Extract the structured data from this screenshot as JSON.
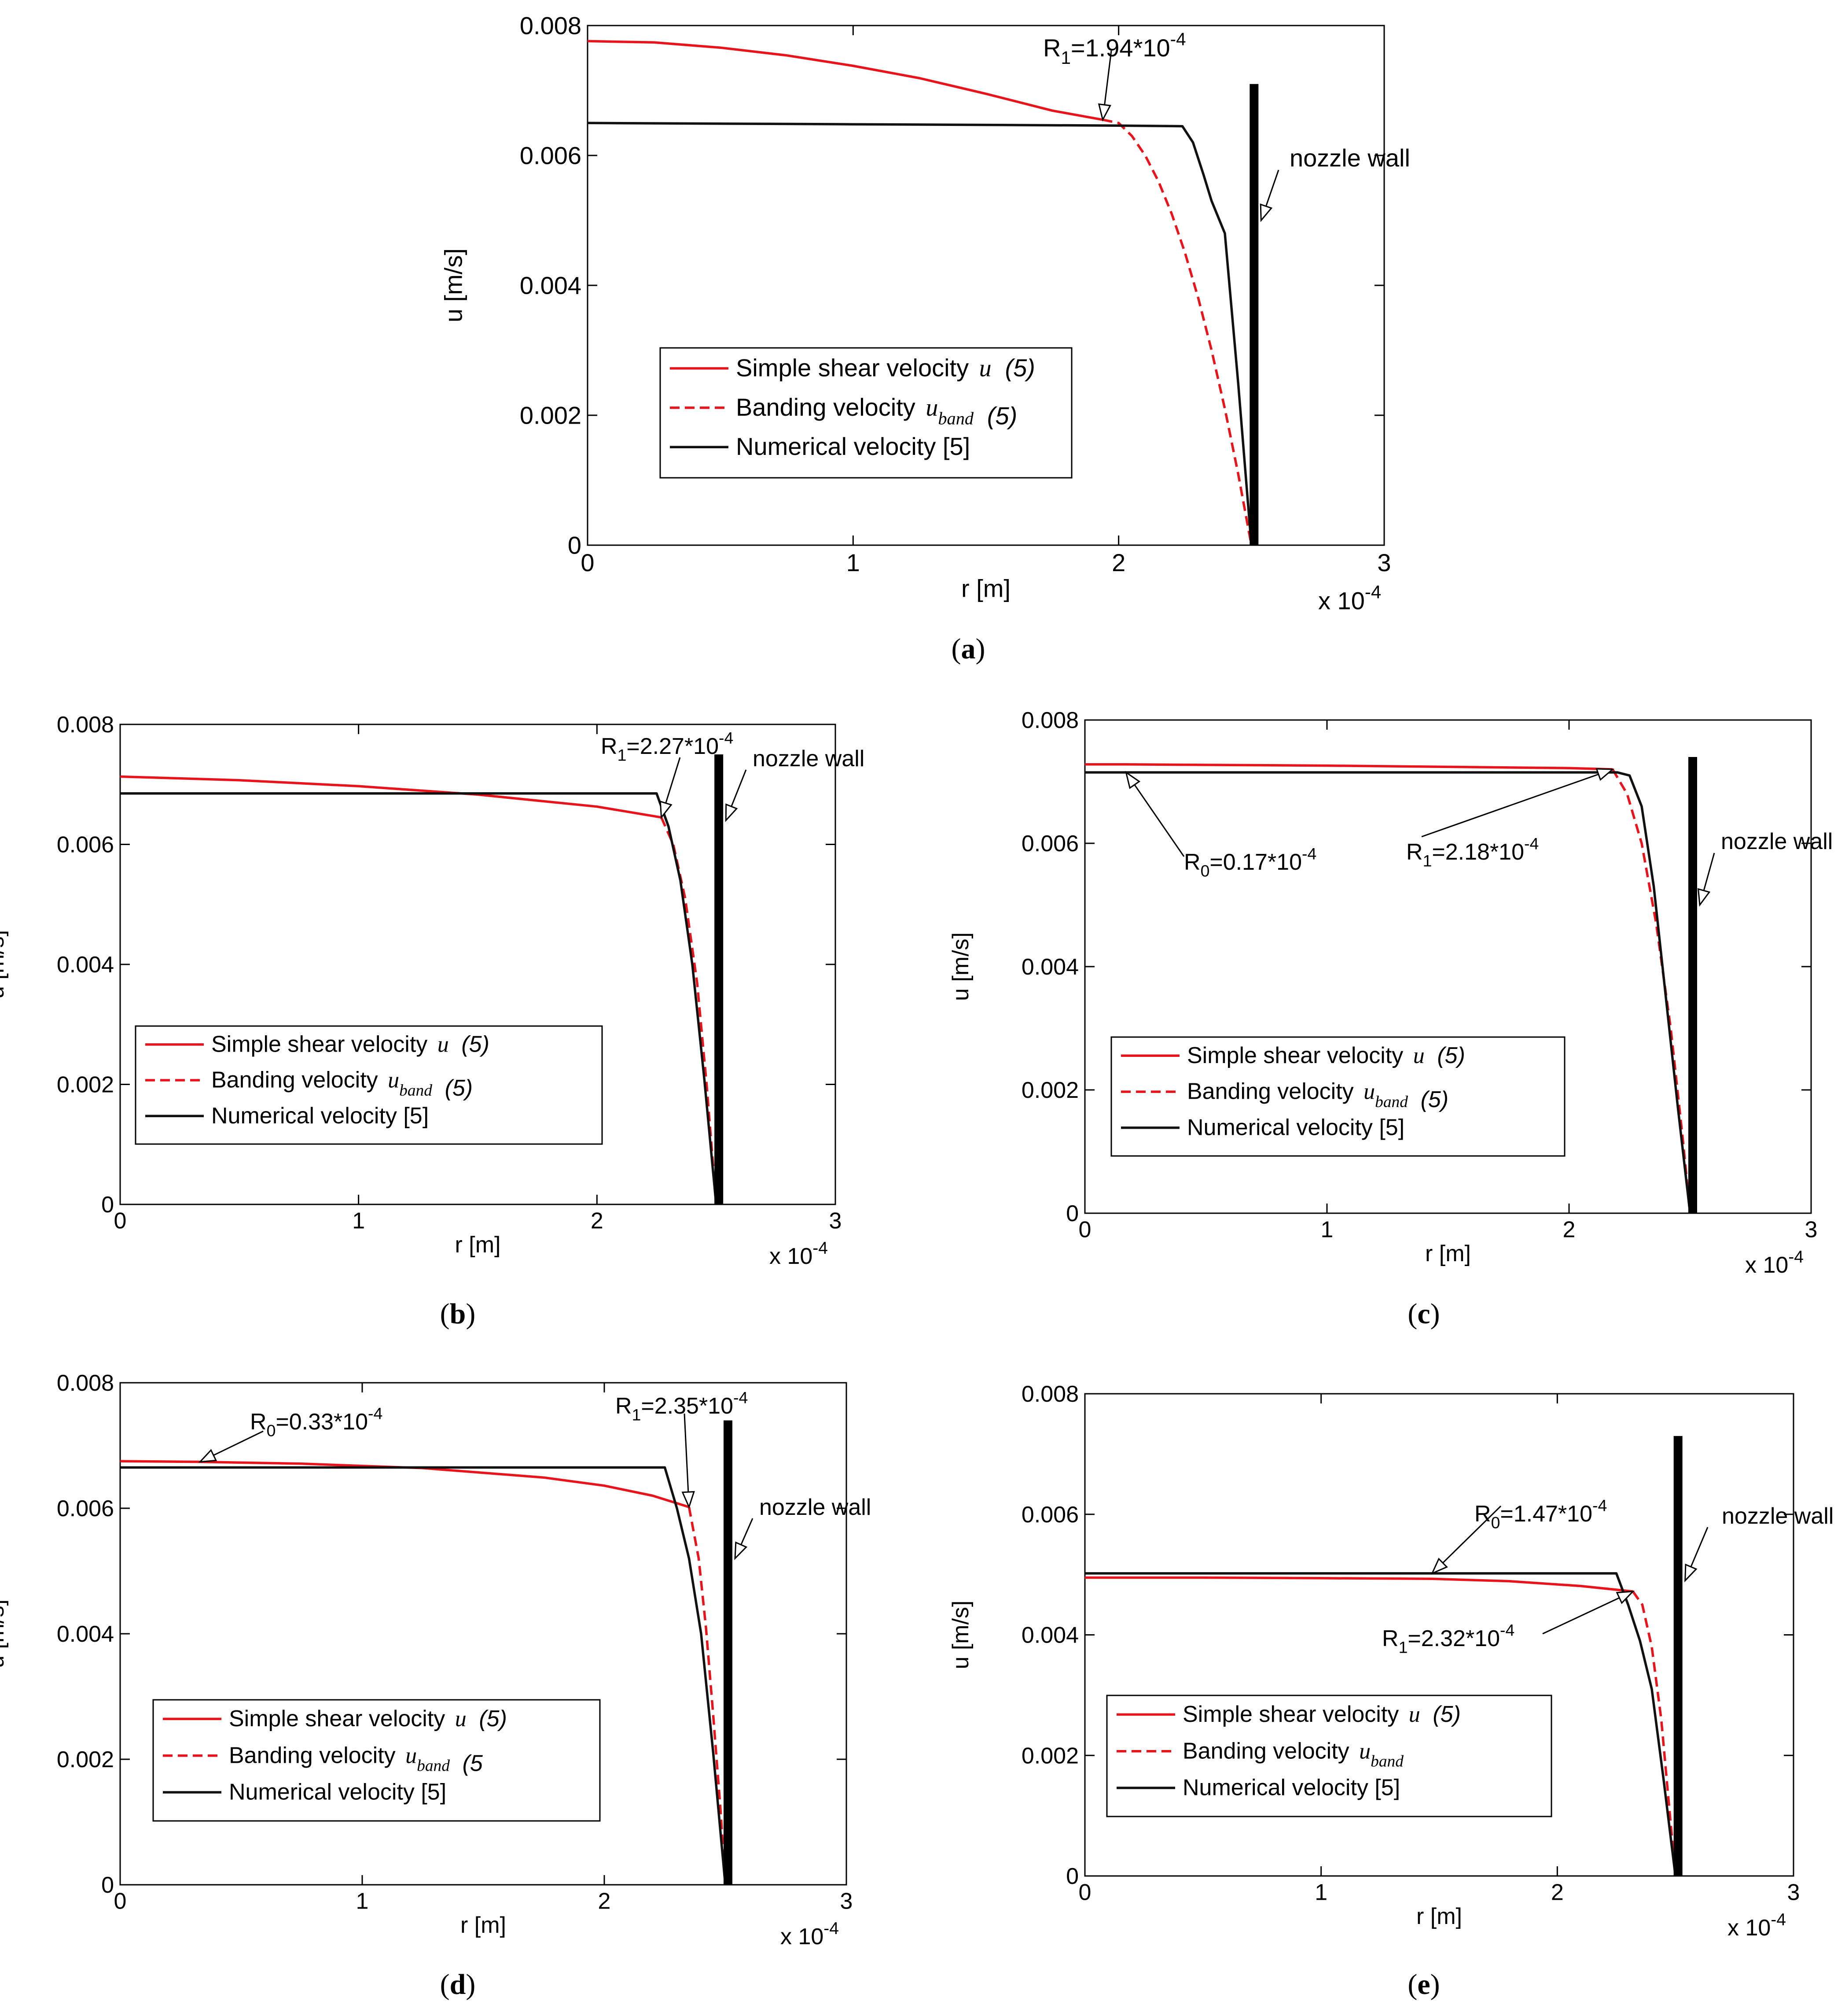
{
  "chart_data": [
    {
      "panel": "a",
      "type": "line",
      "caption_letter": "a",
      "xlabel": "r [m]",
      "ylabel": "u [m/s]",
      "xlim": [
        0,
        3
      ],
      "ylim": [
        0,
        0.008
      ],
      "xticks": [
        0,
        1,
        2,
        3
      ],
      "yticks": [
        0,
        0.002,
        0.004,
        0.006,
        0.008
      ],
      "x_tick_labels": [
        "0",
        "1",
        "2",
        "3"
      ],
      "y_tick_labels": [
        "0",
        "0.002",
        "0.004",
        "0.006",
        "0.008"
      ],
      "x_multiplier": "x 10",
      "x_multiplier_exp": "-4",
      "nozzle_wall": {
        "x": 2.5,
        "y_top": 0.0071
      },
      "series": [
        {
          "name": "Simple shear velocity u (5)",
          "color": "#e8141b",
          "dash": "solid",
          "x": [
            0,
            0.25,
            0.5,
            0.75,
            1.0,
            1.25,
            1.5,
            1.75,
            1.94
          ],
          "y": [
            0.00776,
            0.00774,
            0.00766,
            0.00754,
            0.00738,
            0.00719,
            0.00695,
            0.00669,
            0.00655
          ]
        },
        {
          "name": "Banding velocity u_band (5)",
          "color": "#e8141b",
          "dash": "dashed",
          "x": [
            1.94,
            2.0,
            2.05,
            2.1,
            2.15,
            2.2,
            2.25,
            2.3,
            2.35,
            2.4,
            2.45,
            2.5
          ],
          "y": [
            0.00655,
            0.0065,
            0.0063,
            0.006,
            0.0056,
            0.0051,
            0.0045,
            0.0038,
            0.003,
            0.0021,
            0.0011,
            0.0
          ]
        },
        {
          "name": "Numerical velocity [5]",
          "color": "#111111",
          "dash": "solid",
          "x": [
            0,
            1.0,
            2.0,
            2.24,
            2.28,
            2.32,
            2.35,
            2.4,
            2.45,
            2.5
          ],
          "y": [
            0.0065,
            0.00648,
            0.00646,
            0.00645,
            0.0062,
            0.0057,
            0.0053,
            0.0048,
            0.0025,
            0.0
          ]
        }
      ],
      "legend": [
        {
          "prefix": "Simple shear velocity ",
          "var": "u",
          "sub": "",
          "suffix": "(5)"
        },
        {
          "prefix": "Banding velocity ",
          "var": "u",
          "sub": "band",
          "suffix": "(5)"
        },
        {
          "prefix": "Numerical velocity [5]",
          "var": "",
          "sub": "",
          "suffix": ""
        }
      ],
      "annotations": [
        {
          "base": "R",
          "sub": "1",
          "mid": "=1.94*10",
          "sup": "-4",
          "x": 1.94,
          "y": 0.00655
        },
        {
          "base": "nozzle wall",
          "sub": "",
          "mid": "",
          "sup": "",
          "x": 2.5,
          "y": 0.005
        }
      ]
    },
    {
      "panel": "b",
      "type": "line",
      "caption_letter": "b",
      "xlabel": "r [m]",
      "ylabel": "u [m/s]",
      "xlim": [
        0,
        3
      ],
      "ylim": [
        0,
        0.008
      ],
      "xticks": [
        0,
        1,
        2,
        3
      ],
      "yticks": [
        0,
        0.002,
        0.004,
        0.006,
        0.008
      ],
      "x_tick_labels": [
        "0",
        "1",
        "2",
        "3"
      ],
      "y_tick_labels": [
        "0",
        "0.002",
        "0.004",
        "0.006",
        "0.008"
      ],
      "x_multiplier": "x 10",
      "x_multiplier_exp": "-4",
      "nozzle_wall": {
        "x": 2.5,
        "y_top": 0.0075
      },
      "series": [
        {
          "name": "Simple shear velocity u (5)",
          "color": "#e8141b",
          "dash": "solid",
          "x": [
            0,
            0.5,
            1.0,
            1.5,
            2.0,
            2.27
          ],
          "y": [
            0.00713,
            0.00707,
            0.00697,
            0.00683,
            0.00663,
            0.00645
          ]
        },
        {
          "name": "Banding velocity u_band (5)",
          "color": "#e8141b",
          "dash": "dashed",
          "x": [
            2.27,
            2.32,
            2.37,
            2.42,
            2.46,
            2.5
          ],
          "y": [
            0.00645,
            0.006,
            0.0051,
            0.0037,
            0.002,
            0.0
          ]
        },
        {
          "name": "Numerical velocity [5]",
          "color": "#111111",
          "dash": "solid",
          "x": [
            0,
            1.0,
            2.0,
            2.25,
            2.3,
            2.35,
            2.4,
            2.45,
            2.5
          ],
          "y": [
            0.00685,
            0.00685,
            0.00685,
            0.00685,
            0.0063,
            0.0054,
            0.004,
            0.0021,
            0.0
          ]
        }
      ],
      "legend": [
        {
          "prefix": "Simple shear velocity ",
          "var": "u",
          "sub": "",
          "suffix": "(5)"
        },
        {
          "prefix": "Banding velocity ",
          "var": "u",
          "sub": "band",
          "suffix": "(5)"
        },
        {
          "prefix": "Numerical velocity [5]",
          "var": "",
          "sub": "",
          "suffix": ""
        }
      ],
      "annotations": [
        {
          "base": "R",
          "sub": "1",
          "mid": "=2.27*10",
          "sup": "-4",
          "x": 2.27,
          "y": 0.00645
        },
        {
          "base": "nozzle wall",
          "sub": "",
          "mid": "",
          "sup": "",
          "x": 2.5,
          "y": 0.0064
        }
      ]
    },
    {
      "panel": "c",
      "type": "line",
      "caption_letter": "c",
      "xlabel": "r [m]",
      "ylabel": "u [m/s]",
      "xlim": [
        0,
        3
      ],
      "ylim": [
        0,
        0.008
      ],
      "xticks": [
        0,
        1,
        2,
        3
      ],
      "yticks": [
        0,
        0.002,
        0.004,
        0.006,
        0.008
      ],
      "x_tick_labels": [
        "0",
        "1",
        "2",
        "3"
      ],
      "y_tick_labels": [
        "0",
        "0.002",
        "0.004",
        "0.006",
        "0.008"
      ],
      "x_multiplier": "x 10",
      "x_multiplier_exp": "-4",
      "nozzle_wall": {
        "x": 2.5,
        "y_top": 0.0074
      },
      "series": [
        {
          "name": "Simple shear velocity u (5)",
          "color": "#e8141b",
          "dash": "solid",
          "x": [
            0,
            0.17,
            1.0,
            2.0,
            2.18
          ],
          "y": [
            0.00728,
            0.00728,
            0.00726,
            0.00722,
            0.0072
          ]
        },
        {
          "name": "Banding velocity u_band (5)",
          "color": "#e8141b",
          "dash": "dashed",
          "x": [
            2.18,
            2.24,
            2.3,
            2.36,
            2.42,
            2.47,
            2.5
          ],
          "y": [
            0.0072,
            0.0068,
            0.006,
            0.0047,
            0.003,
            0.0012,
            0.0
          ]
        },
        {
          "name": "Numerical velocity [5]",
          "color": "#111111",
          "dash": "solid",
          "x": [
            0,
            1.0,
            2.0,
            2.2,
            2.25,
            2.3,
            2.35,
            2.4,
            2.45,
            2.5
          ],
          "y": [
            0.00715,
            0.00715,
            0.00715,
            0.00715,
            0.0071,
            0.0066,
            0.0053,
            0.0035,
            0.0017,
            0.0
          ]
        }
      ],
      "legend": [
        {
          "prefix": "Simple shear velocity ",
          "var": "u",
          "sub": "",
          "suffix": "(5)"
        },
        {
          "prefix": "Banding velocity ",
          "var": "u",
          "sub": "band",
          "suffix": "(5)"
        },
        {
          "prefix": "Numerical velocity [5]",
          "var": "",
          "sub": "",
          "suffix": ""
        }
      ],
      "annotations": [
        {
          "base": "R",
          "sub": "0",
          "mid": "=0.17*10",
          "sup": "-4",
          "x": 0.17,
          "y": 0.00715
        },
        {
          "base": "R",
          "sub": "1",
          "mid": "=2.18*10",
          "sup": "-4",
          "x": 2.18,
          "y": 0.0072
        },
        {
          "base": "nozzle wall",
          "sub": "",
          "mid": "",
          "sup": "",
          "x": 2.5,
          "y": 0.005
        }
      ]
    },
    {
      "panel": "d",
      "type": "line",
      "caption_letter": "d",
      "xlabel": "r [m]",
      "ylabel": "u [m/s]",
      "xlim": [
        0,
        3
      ],
      "ylim": [
        0,
        0.008
      ],
      "xticks": [
        0,
        1,
        2,
        3
      ],
      "yticks": [
        0,
        0.002,
        0.004,
        0.006,
        0.008
      ],
      "x_tick_labels": [
        "0",
        "1",
        "2",
        "3"
      ],
      "y_tick_labels": [
        "0",
        "0.002",
        "0.004",
        "0.006",
        "0.008"
      ],
      "x_multiplier": "x 10",
      "x_multiplier_exp": "-4",
      "nozzle_wall": {
        "x": 2.5,
        "y_top": 0.0074
      },
      "series": [
        {
          "name": "Simple shear velocity u (5)",
          "color": "#e8141b",
          "dash": "solid",
          "x": [
            0,
            0.33,
            0.75,
            1.25,
            1.75,
            2.0,
            2.2,
            2.35
          ],
          "y": [
            0.00675,
            0.00674,
            0.00671,
            0.00664,
            0.00649,
            0.00636,
            0.0062,
            0.00602
          ]
        },
        {
          "name": "Banding velocity u_band (5",
          "color": "#e8141b",
          "dash": "dashed",
          "x": [
            2.35,
            2.39,
            2.42,
            2.45,
            2.48,
            2.5
          ],
          "y": [
            0.00602,
            0.0052,
            0.0041,
            0.0027,
            0.0012,
            0.0
          ]
        },
        {
          "name": "Numerical velocity [5]",
          "color": "#111111",
          "dash": "solid",
          "x": [
            0,
            1.0,
            2.0,
            2.25,
            2.3,
            2.35,
            2.4,
            2.45,
            2.5
          ],
          "y": [
            0.00665,
            0.00665,
            0.00665,
            0.00665,
            0.006,
            0.0052,
            0.004,
            0.0021,
            0.0
          ]
        }
      ],
      "legend": [
        {
          "prefix": "Simple shear velocity ",
          "var": "u",
          "sub": "",
          "suffix": "(5)"
        },
        {
          "prefix": "Banding velocity ",
          "var": "u",
          "sub": "band",
          "suffix": "(5"
        },
        {
          "prefix": "Numerical velocity [5]",
          "var": "",
          "sub": "",
          "suffix": ""
        }
      ],
      "annotations": [
        {
          "base": "R",
          "sub": "0",
          "mid": "=0.33*10",
          "sup": "-4",
          "x": 0.33,
          "y": 0.00674
        },
        {
          "base": "R",
          "sub": "1",
          "mid": "=2.35*10",
          "sup": "-4",
          "x": 2.35,
          "y": 0.00602
        },
        {
          "base": "nozzle wall",
          "sub": "",
          "mid": "",
          "sup": "",
          "x": 2.5,
          "y": 0.0052
        }
      ]
    },
    {
      "panel": "e",
      "type": "line",
      "caption_letter": "e",
      "xlabel": "r [m]",
      "ylabel": "u [m/s]",
      "xlim": [
        0,
        3
      ],
      "ylim": [
        0,
        0.008
      ],
      "xticks": [
        0,
        1,
        2,
        3
      ],
      "yticks": [
        0,
        0.002,
        0.004,
        0.006,
        0.008
      ],
      "x_tick_labels": [
        "0",
        "1",
        "2",
        "3"
      ],
      "y_tick_labels": [
        "0",
        "0.002",
        "0.004",
        "0.006",
        "0.008"
      ],
      "x_multiplier": "x 10",
      "x_multiplier_exp": "-4",
      "nozzle_wall": {
        "x": 2.5,
        "y_top": 0.0073
      },
      "series": [
        {
          "name": "Simple shear velocity u (5)",
          "color": "#e8141b",
          "dash": "solid",
          "x": [
            0,
            0.5,
            1.0,
            1.47,
            1.8,
            2.1,
            2.32
          ],
          "y": [
            0.00495,
            0.00495,
            0.00494,
            0.00493,
            0.00489,
            0.00481,
            0.00472
          ]
        },
        {
          "name": "Banding velocity u_band",
          "color": "#e8141b",
          "dash": "dashed",
          "x": [
            2.32,
            2.36,
            2.4,
            2.44,
            2.47,
            2.5
          ],
          "y": [
            0.00472,
            0.0045,
            0.0038,
            0.0026,
            0.0013,
            0.0
          ]
        },
        {
          "name": "Numerical velocity [5]",
          "color": "#111111",
          "dash": "solid",
          "x": [
            0,
            1.0,
            2.0,
            2.25,
            2.3,
            2.35,
            2.4,
            2.45,
            2.5
          ],
          "y": [
            0.00502,
            0.00502,
            0.00502,
            0.00502,
            0.0045,
            0.0039,
            0.0031,
            0.0016,
            0.0
          ]
        }
      ],
      "legend": [
        {
          "prefix": "Simple shear velocity ",
          "var": "u",
          "sub": "",
          "suffix": "(5)"
        },
        {
          "prefix": "Banding velocity ",
          "var": "u",
          "sub": "band",
          "suffix": ""
        },
        {
          "prefix": "Numerical velocity [5]",
          "var": "",
          "sub": "",
          "suffix": ""
        }
      ],
      "annotations": [
        {
          "base": "R",
          "sub": "0",
          "mid": "=1.47*10",
          "sup": "-4",
          "x": 1.47,
          "y": 0.00502
        },
        {
          "base": "R",
          "sub": "1",
          "mid": "=2.32*10",
          "sup": "-4",
          "x": 2.32,
          "y": 0.00472
        },
        {
          "base": "nozzle wall",
          "sub": "",
          "mid": "",
          "sup": "",
          "x": 2.5,
          "y": 0.0049
        }
      ]
    }
  ]
}
